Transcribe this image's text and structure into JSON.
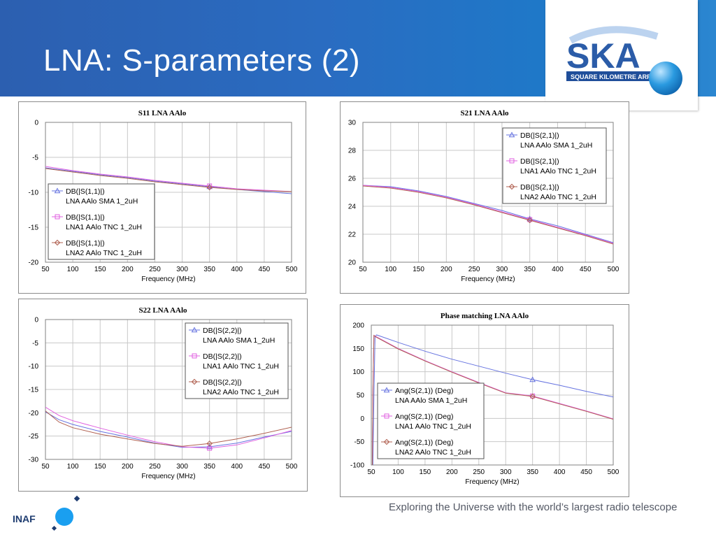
{
  "slide": {
    "title": "LNA: S-parameters (2)",
    "footer": "Exploring the Universe with the world’s largest radio telescope"
  },
  "logo": {
    "name": "SKA",
    "subtitle": "SQUARE KILOMETRE ARRAY"
  },
  "institute_logo": {
    "name": "INAF"
  },
  "colors": {
    "header_band": "#2a6cc1",
    "sma": "#6673e0",
    "tnc1": "#e060e0",
    "tnc2": "#b06050",
    "grid": "#c8c8c8",
    "plot_border": "#808080"
  },
  "chart_data": [
    {
      "id": "s11",
      "type": "line",
      "title": "S11 LNA AAlo",
      "xlabel": "Frequency (MHz)",
      "ylabel": "",
      "xlim": [
        50,
        500
      ],
      "ylim": [
        -20,
        0
      ],
      "xticks": [
        50,
        100,
        150,
        200,
        250,
        300,
        350,
        400,
        450,
        500
      ],
      "yticks": [
        0,
        -5,
        -10,
        -15,
        -20
      ],
      "grid": true,
      "legend_position": "left",
      "marker_x": 350,
      "series": [
        {
          "name": "DB(|S(1,1)|)",
          "label2": "LNA AAlo SMA 1_2uH",
          "marker": "triangle",
          "x": [
            50,
            100,
            150,
            200,
            250,
            300,
            350,
            400,
            450,
            500
          ],
          "y": [
            -6.5,
            -7.0,
            -7.5,
            -7.9,
            -8.4,
            -8.8,
            -9.2,
            -9.6,
            -9.9,
            -10.2
          ]
        },
        {
          "name": "DB(|S(1,1)|)",
          "label2": "LNA1 AAlo TNC 1_2uH",
          "marker": "square",
          "x": [
            50,
            100,
            150,
            200,
            250,
            300,
            350,
            400,
            450,
            500
          ],
          "y": [
            -6.3,
            -6.9,
            -7.4,
            -7.8,
            -8.3,
            -8.7,
            -9.1,
            -9.5,
            -9.7,
            -9.9
          ]
        },
        {
          "name": "DB(|S(1,1)|)",
          "label2": "LNA2 AAlo TNC 1_2uH",
          "marker": "diamond",
          "x": [
            50,
            100,
            150,
            200,
            250,
            300,
            350,
            400,
            450,
            500
          ],
          "y": [
            -6.6,
            -7.1,
            -7.6,
            -8.0,
            -8.5,
            -8.9,
            -9.3,
            -9.6,
            -9.8,
            -9.9
          ]
        }
      ]
    },
    {
      "id": "s21",
      "type": "line",
      "title": "S21 LNA AAlo",
      "xlabel": "Frequency (MHz)",
      "ylabel": "",
      "xlim": [
        50,
        500
      ],
      "ylim": [
        20,
        30
      ],
      "xticks": [
        50,
        100,
        150,
        200,
        250,
        300,
        350,
        400,
        450,
        500
      ],
      "yticks": [
        30,
        28,
        26,
        24,
        22,
        20
      ],
      "grid": true,
      "legend_position": "top-right",
      "marker_x": 350,
      "series": [
        {
          "name": "DB(|S(2,1)|)",
          "label2": "LNA AAlo SMA 1_2uH",
          "marker": "triangle",
          "x": [
            50,
            100,
            150,
            200,
            250,
            300,
            350,
            400,
            450,
            500
          ],
          "y": [
            25.5,
            25.4,
            25.1,
            24.7,
            24.2,
            23.7,
            23.1,
            22.6,
            22.0,
            21.4
          ]
        },
        {
          "name": "DB(|S(2,1)|)",
          "label2": "LNA1 AAlo TNC 1_2uH",
          "marker": "square",
          "x": [
            50,
            100,
            150,
            200,
            250,
            300,
            350,
            400,
            450,
            500
          ],
          "y": [
            25.5,
            25.35,
            25.05,
            24.65,
            24.15,
            23.6,
            23.05,
            22.5,
            21.95,
            21.35
          ]
        },
        {
          "name": "DB(|S(2,1)|)",
          "label2": "LNA2 AAlo TNC 1_2uH",
          "marker": "diamond",
          "x": [
            50,
            100,
            150,
            200,
            250,
            300,
            350,
            400,
            450,
            500
          ],
          "y": [
            25.45,
            25.3,
            25.0,
            24.6,
            24.1,
            23.55,
            23.0,
            22.45,
            21.9,
            21.3
          ]
        }
      ]
    },
    {
      "id": "s22",
      "type": "line",
      "title": "S22 LNA AAlo",
      "xlabel": "Frequency (MHz)",
      "ylabel": "",
      "xlim": [
        50,
        500
      ],
      "ylim": [
        -30,
        0
      ],
      "xticks": [
        50,
        100,
        150,
        200,
        250,
        300,
        350,
        400,
        450,
        500
      ],
      "yticks": [
        0,
        -5,
        -10,
        -15,
        -20,
        -25,
        -30
      ],
      "grid": true,
      "legend_position": "top-right",
      "marker_x": 350,
      "series": [
        {
          "name": "DB(|S(2,2)|)",
          "label2": "LNA AAlo SMA 1_2uH",
          "marker": "triangle",
          "x": [
            50,
            75,
            100,
            150,
            200,
            250,
            300,
            350,
            400,
            450,
            500
          ],
          "y": [
            -19.8,
            -21.5,
            -22.5,
            -24.0,
            -25.2,
            -26.5,
            -27.4,
            -27.3,
            -26.5,
            -25.2,
            -24.0
          ]
        },
        {
          "name": "DB(|S(2,2)|)",
          "label2": "LNA1 AAlo TNC 1_2uH",
          "marker": "square",
          "x": [
            50,
            75,
            100,
            150,
            200,
            250,
            300,
            350,
            400,
            450,
            500
          ],
          "y": [
            -18.8,
            -20.6,
            -21.7,
            -23.3,
            -24.8,
            -26.2,
            -27.3,
            -27.6,
            -26.9,
            -25.4,
            -23.8
          ]
        },
        {
          "name": "DB(|S(2,2)|)",
          "label2": "LNA2 AAlo TNC 1_2uH",
          "marker": "diamond",
          "x": [
            50,
            75,
            100,
            150,
            200,
            250,
            300,
            350,
            400,
            450,
            500
          ],
          "y": [
            -19.6,
            -22.0,
            -23.2,
            -24.6,
            -25.6,
            -26.6,
            -27.2,
            -26.6,
            -25.6,
            -24.4,
            -23.1
          ]
        }
      ]
    },
    {
      "id": "phase",
      "type": "line",
      "title": "Phase matching LNA AAlo",
      "xlabel": "Frequency (MHz)",
      "ylabel": "",
      "xlim": [
        50,
        500
      ],
      "ylim": [
        -100,
        200
      ],
      "xticks": [
        50,
        100,
        150,
        200,
        250,
        300,
        350,
        400,
        450,
        500
      ],
      "yticks": [
        200,
        150,
        100,
        50,
        0,
        -50,
        -100
      ],
      "grid": true,
      "legend_position": "bottom-left",
      "marker_x": 350,
      "series": [
        {
          "name": "Ang(S(2,1)) (Deg)",
          "label2": "LNA AAlo SMA 1_2uH",
          "marker": "triangle",
          "x": [
            53,
            55,
            57,
            60,
            100,
            150,
            200,
            250,
            300,
            350,
            400,
            450,
            500
          ],
          "y": [
            -100,
            50,
            176,
            179,
            163,
            144,
            127,
            112,
            97,
            83,
            71,
            58,
            46
          ]
        },
        {
          "name": "Ang(S(2,1)) (Deg)",
          "label2": "LNA1 AAlo TNC 1_2uH",
          "marker": "square",
          "x": [
            52,
            53,
            55,
            58,
            100,
            150,
            200,
            250,
            300,
            350,
            400,
            450,
            500
          ],
          "y": [
            -100,
            60,
            178,
            176,
            150,
            124,
            100,
            77,
            55,
            48,
            32,
            16,
            -1
          ]
        },
        {
          "name": "Ang(S(2,1)) (Deg)",
          "label2": "LNA2 AAlo TNC 1_2uH",
          "marker": "diamond",
          "x": [
            52,
            53,
            55,
            58,
            100,
            150,
            200,
            250,
            300,
            350,
            400,
            450,
            500
          ],
          "y": [
            -100,
            58,
            178,
            175,
            149,
            123,
            99,
            76,
            54,
            47,
            31,
            15,
            -2
          ]
        }
      ]
    }
  ]
}
